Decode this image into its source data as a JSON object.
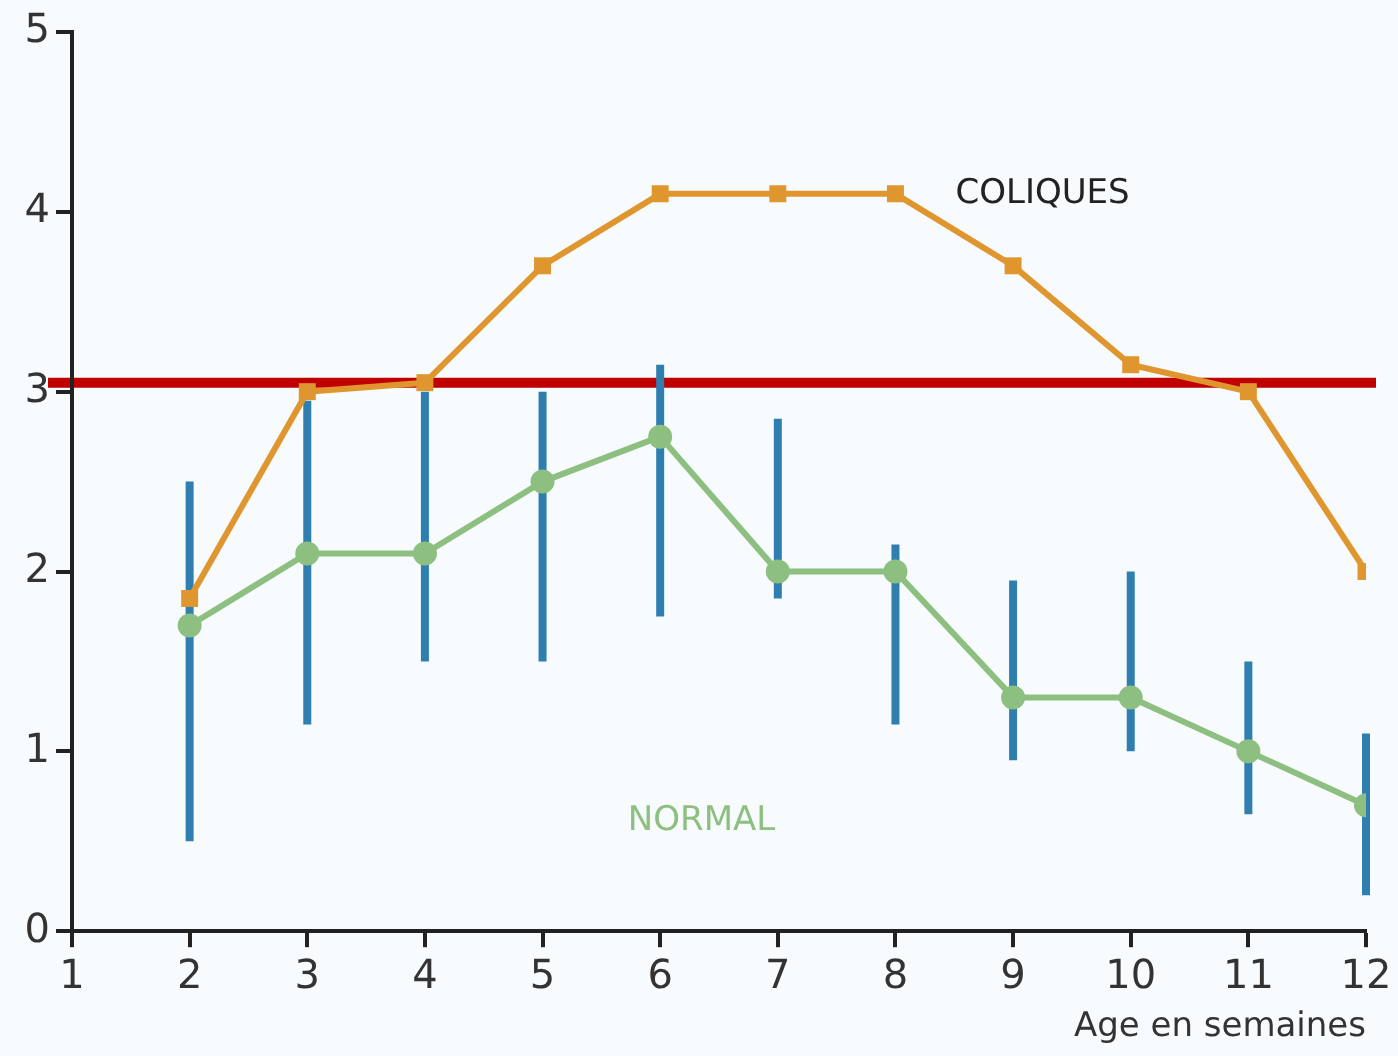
{
  "chart_data": {
    "type": "line",
    "xlabel": "Age en semaines",
    "x": [
      2,
      3,
      4,
      5,
      6,
      7,
      8,
      9,
      10,
      11,
      12
    ],
    "series": [
      {
        "name": "COLIQUES",
        "color": "#e0962e",
        "marker": "square",
        "values": [
          1.85,
          3.0,
          3.05,
          3.7,
          4.1,
          4.1,
          4.1,
          3.7,
          3.15,
          3.0,
          2.0
        ]
      },
      {
        "name": "NORMAL",
        "color": "#8dbf80",
        "marker": "circle",
        "values": [
          1.7,
          2.1,
          2.1,
          2.5,
          2.75,
          2.0,
          2.0,
          1.3,
          1.3,
          1.0,
          0.7
        ],
        "errors": [
          [
            0.5,
            2.5
          ],
          [
            1.15,
            2.95
          ],
          [
            1.5,
            3.0
          ],
          [
            1.5,
            3.0
          ],
          [
            1.75,
            3.15
          ],
          [
            1.85,
            2.85
          ],
          [
            1.15,
            2.15
          ],
          [
            0.95,
            1.95
          ],
          [
            1.0,
            2.0
          ],
          [
            0.65,
            1.5
          ],
          [
            0.2,
            1.1
          ]
        ]
      }
    ],
    "xlim": [
      1,
      12
    ],
    "xticks": [
      1,
      2,
      3,
      4,
      5,
      6,
      7,
      8,
      9,
      10,
      11,
      12
    ],
    "ylim": [
      0,
      5
    ],
    "yticks": [
      0,
      1,
      2,
      3,
      4,
      5
    ],
    "ref_lines": [
      {
        "axis": "y",
        "value": 3.05,
        "color": "#c00000"
      }
    ],
    "grid": false,
    "legend": false
  }
}
